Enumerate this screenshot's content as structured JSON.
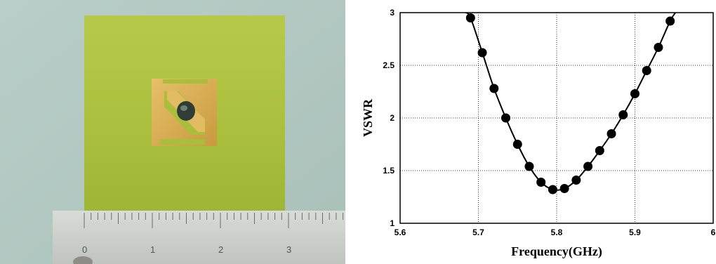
{
  "photo": {
    "ruler_numbers": [
      "0",
      "1",
      "2",
      "3"
    ]
  },
  "chart_data": {
    "type": "line",
    "xlabel": "Frequency(GHz)",
    "ylabel": "VSWR",
    "xlim": [
      5.6,
      6.0
    ],
    "ylim": [
      1,
      3
    ],
    "x_ticks": [
      "5.6",
      "5.7",
      "5.8",
      "5.9",
      "6"
    ],
    "y_ticks": [
      "1",
      "1.5",
      "2",
      "2.5",
      "3"
    ],
    "grid": true,
    "line_color": "#000000",
    "marker": "filled-circle",
    "series": [
      {
        "x": [
          5.69,
          5.705,
          5.72,
          5.735,
          5.75,
          5.765,
          5.78,
          5.795,
          5.81,
          5.825,
          5.84,
          5.855,
          5.87,
          5.885,
          5.9,
          5.915,
          5.93,
          5.945
        ],
        "y": [
          2.95,
          2.62,
          2.28,
          2.0,
          1.75,
          1.54,
          1.39,
          1.32,
          1.33,
          1.41,
          1.54,
          1.69,
          1.85,
          2.03,
          2.23,
          2.45,
          2.67,
          2.92
        ]
      }
    ]
  }
}
